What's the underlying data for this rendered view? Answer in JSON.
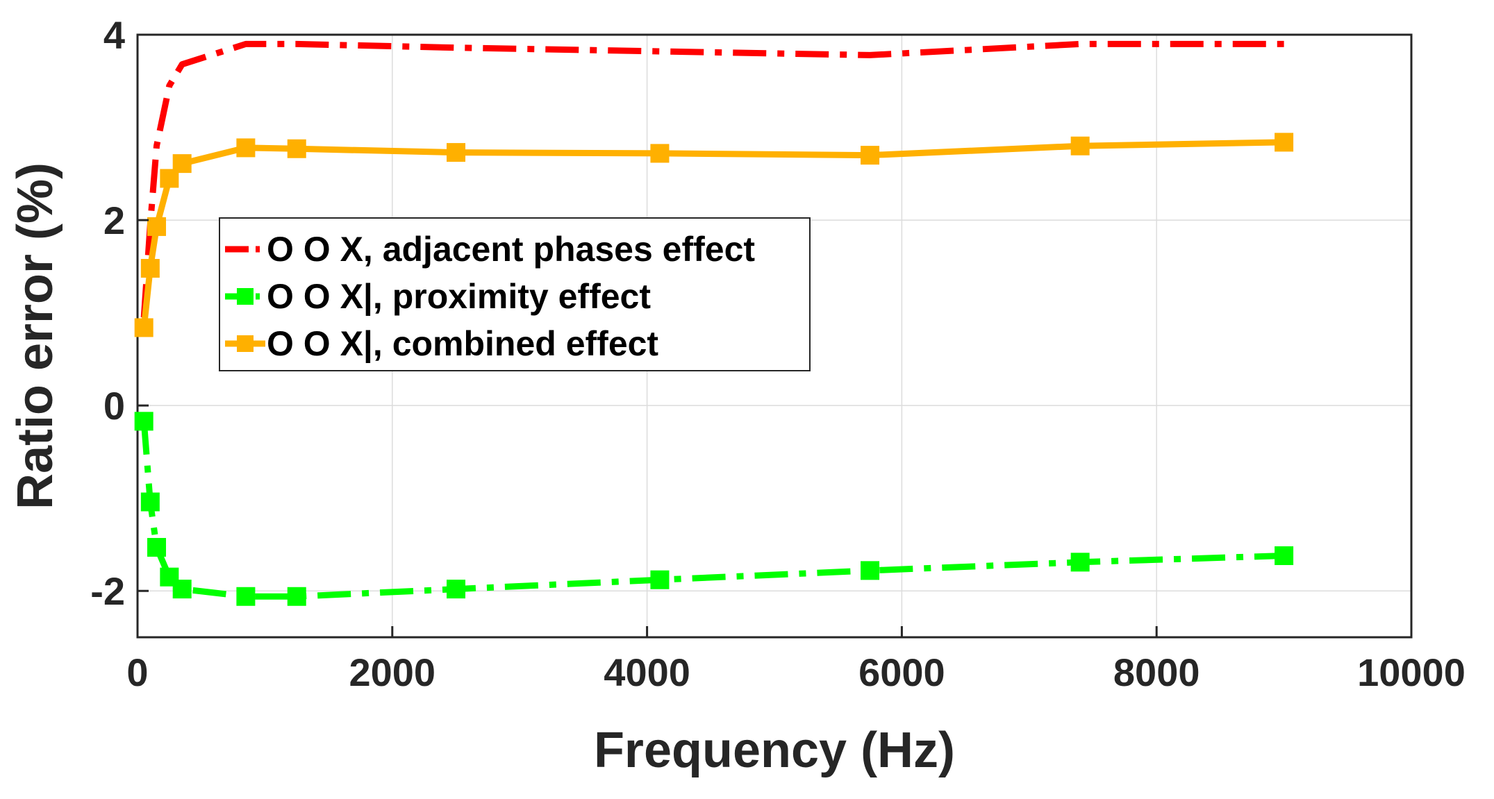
{
  "chart_data": {
    "type": "line",
    "title": "",
    "xlabel": "Frequency (Hz)",
    "ylabel": "Ratio error (%)",
    "xlim": [
      0,
      10000
    ],
    "ylim": [
      -2.5,
      4
    ],
    "xticks": [
      0,
      2000,
      4000,
      6000,
      8000,
      10000
    ],
    "xtick_labels": [
      "0",
      "2000",
      "4000",
      "6000",
      "8000",
      "10000"
    ],
    "yticks": [
      -2,
      0,
      2,
      4
    ],
    "ytick_labels": [
      "-2",
      "0",
      "2",
      "4"
    ],
    "grid": true,
    "legend_position": "upper-left",
    "series": [
      {
        "name": "O O X, adjacent phases effect",
        "color": "#ff0000",
        "line_style": "dashdot",
        "marker": "none",
        "x": [
          50,
          100,
          150,
          250,
          350,
          850,
          1250,
          2500,
          4100,
          5750,
          7400,
          9000
        ],
        "y": [
          0.95,
          1.95,
          2.8,
          3.45,
          3.68,
          3.9,
          3.9,
          3.86,
          3.82,
          3.78,
          3.9,
          3.9
        ]
      },
      {
        "name": "O O X|, proximity effect",
        "color": "#00ff00",
        "line_style": "dashdot",
        "marker": "square",
        "x": [
          50,
          100,
          150,
          250,
          350,
          850,
          1250,
          2500,
          4100,
          5750,
          7400,
          9000
        ],
        "y": [
          -0.17,
          -1.04,
          -1.53,
          -1.85,
          -1.98,
          -2.06,
          -2.06,
          -1.98,
          -1.88,
          -1.78,
          -1.69,
          -1.62
        ]
      },
      {
        "name": "O O X|, combined effect",
        "color": "#ffb000",
        "line_style": "solid",
        "marker": "square",
        "x": [
          50,
          100,
          150,
          250,
          350,
          850,
          1250,
          2500,
          4100,
          5750,
          7400,
          9000
        ],
        "y": [
          0.84,
          1.48,
          1.93,
          2.45,
          2.61,
          2.78,
          2.77,
          2.73,
          2.72,
          2.7,
          2.8,
          2.84
        ]
      }
    ]
  }
}
